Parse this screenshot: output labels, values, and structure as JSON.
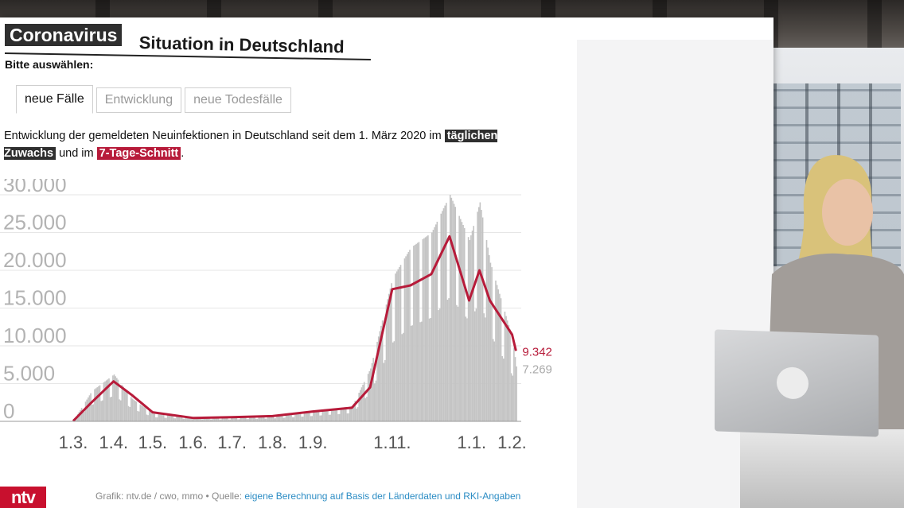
{
  "header": {
    "brand": "Coronavirus",
    "title": "Situation in Deutschland",
    "select_label": "Bitte auswählen:"
  },
  "tabs": [
    {
      "label": "neue Fälle",
      "active": true
    },
    {
      "label": "Entwicklung",
      "active": false
    },
    {
      "label": "neue Todesfälle",
      "active": false
    }
  ],
  "description": {
    "text_before": "Entwicklung der gemeldeten Neuinfektionen in Deutschland seit dem 1. März 2020 im ",
    "tag_daily": "täglichen Zuwachs",
    "text_middle": " und im ",
    "tag_avg": "7-Tage-Schnitt",
    "text_after": "."
  },
  "chart_data": {
    "type": "bar",
    "title": "",
    "xlabel": "",
    "ylabel": "",
    "ylim": [
      0,
      30000
    ],
    "yticks": [
      "30.000",
      "25.000",
      "20.000",
      "15.000",
      "10.000",
      "5.000",
      "0"
    ],
    "xticks": [
      "1.3.",
      "1.4.",
      "1.5.",
      "1.6.",
      "1.7.",
      "1.8.",
      "1.9.",
      "1.11.",
      "1.1.",
      "1.2."
    ],
    "grid": true,
    "colors": {
      "daily": "#c4c4c4",
      "avg": "#b71b3a"
    },
    "series": [
      {
        "name": "täglichen Zuwachs",
        "kind": "bar",
        "x": [
          "2020-03-01",
          "2020-03-15",
          "2020-04-01",
          "2020-04-15",
          "2020-05-01",
          "2020-06-01",
          "2020-07-01",
          "2020-08-01",
          "2020-09-01",
          "2020-10-01",
          "2020-10-15",
          "2020-11-01",
          "2020-11-15",
          "2020-12-01",
          "2020-12-15",
          "2020-12-30",
          "2021-01-07",
          "2021-01-15",
          "2021-02-01",
          "2021-02-04"
        ],
        "values": [
          100,
          4000,
          6200,
          3000,
          1000,
          500,
          450,
          700,
          1300,
          2000,
          7000,
          19000,
          23000,
          25000,
          30000,
          24000,
          29000,
          21000,
          11000,
          7269
        ]
      },
      {
        "name": "7-Tage-Schnitt",
        "kind": "line",
        "x": [
          "2020-03-01",
          "2020-03-15",
          "2020-04-01",
          "2020-04-15",
          "2020-05-01",
          "2020-06-01",
          "2020-07-01",
          "2020-08-01",
          "2020-09-01",
          "2020-10-01",
          "2020-10-15",
          "2020-11-01",
          "2020-11-15",
          "2020-12-01",
          "2020-12-15",
          "2020-12-30",
          "2021-01-07",
          "2021-01-15",
          "2021-02-01",
          "2021-02-04"
        ],
        "values": [
          50,
          2500,
          5300,
          3500,
          1200,
          450,
          550,
          700,
          1300,
          1800,
          4500,
          17500,
          18000,
          19500,
          24500,
          16000,
          20000,
          16000,
          11500,
          9342
        ]
      }
    ],
    "end_labels": {
      "avg": "9.342",
      "daily": "7.269"
    }
  },
  "footer": {
    "credit": "Grafik: ntv.de / cwo, mmo • Quelle: ",
    "source": "eigene Berechnung auf Basis der Länderdaten und RKI-Angaben",
    "logo": "ntv"
  }
}
